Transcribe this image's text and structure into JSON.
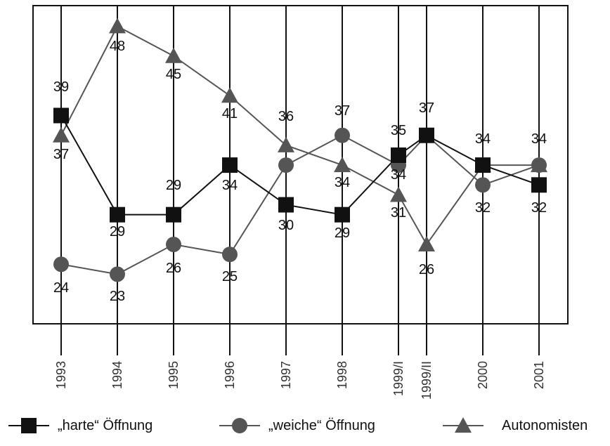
{
  "chart_data": {
    "type": "line",
    "categories": [
      "1993",
      "1994",
      "1995",
      "1996",
      "1997",
      "1998",
      "1999/I",
      "1999/II",
      "2000",
      "2001"
    ],
    "series": [
      {
        "name": "„harte“ Öffnung",
        "values": [
          39,
          29,
          29,
          34,
          30,
          29,
          35,
          37,
          34,
          32
        ],
        "color": "#111111",
        "marker": "square"
      },
      {
        "name": "„weiche“ Öffnung",
        "values": [
          24,
          23,
          26,
          25,
          34,
          37,
          34,
          37,
          32,
          34
        ],
        "color": "#555555",
        "marker": "circle"
      },
      {
        "name": "Autonomisten",
        "values": [
          37,
          48,
          45,
          41,
          36,
          34,
          31,
          26,
          34,
          34
        ],
        "color": "#555555",
        "marker": "triangle"
      }
    ],
    "data_labels": [
      [
        "39",
        "29",
        "29",
        "34",
        "30",
        "29",
        "35",
        "",
        "",
        "32"
      ],
      [
        "24",
        "23",
        "26",
        "25",
        "",
        "37",
        "34",
        "",
        "32",
        "34"
      ],
      [
        "37",
        "48",
        "45",
        "41",
        "36",
        "34",
        "31",
        "26",
        "34",
        ""
      ]
    ],
    "extra_labels": [
      "37"
    ],
    "ylim": [
      18,
      50
    ],
    "grid": true,
    "legend_position": "bottom",
    "title": "",
    "xlabel": "",
    "ylabel": ""
  },
  "legend": {
    "items": [
      {
        "label": "„harte“ Öffnung",
        "marker": "square-icon"
      },
      {
        "label": "„weiche“ Öffnung",
        "marker": "circle-icon"
      },
      {
        "label": "Autonomisten",
        "marker": "triangle-icon"
      }
    ]
  }
}
